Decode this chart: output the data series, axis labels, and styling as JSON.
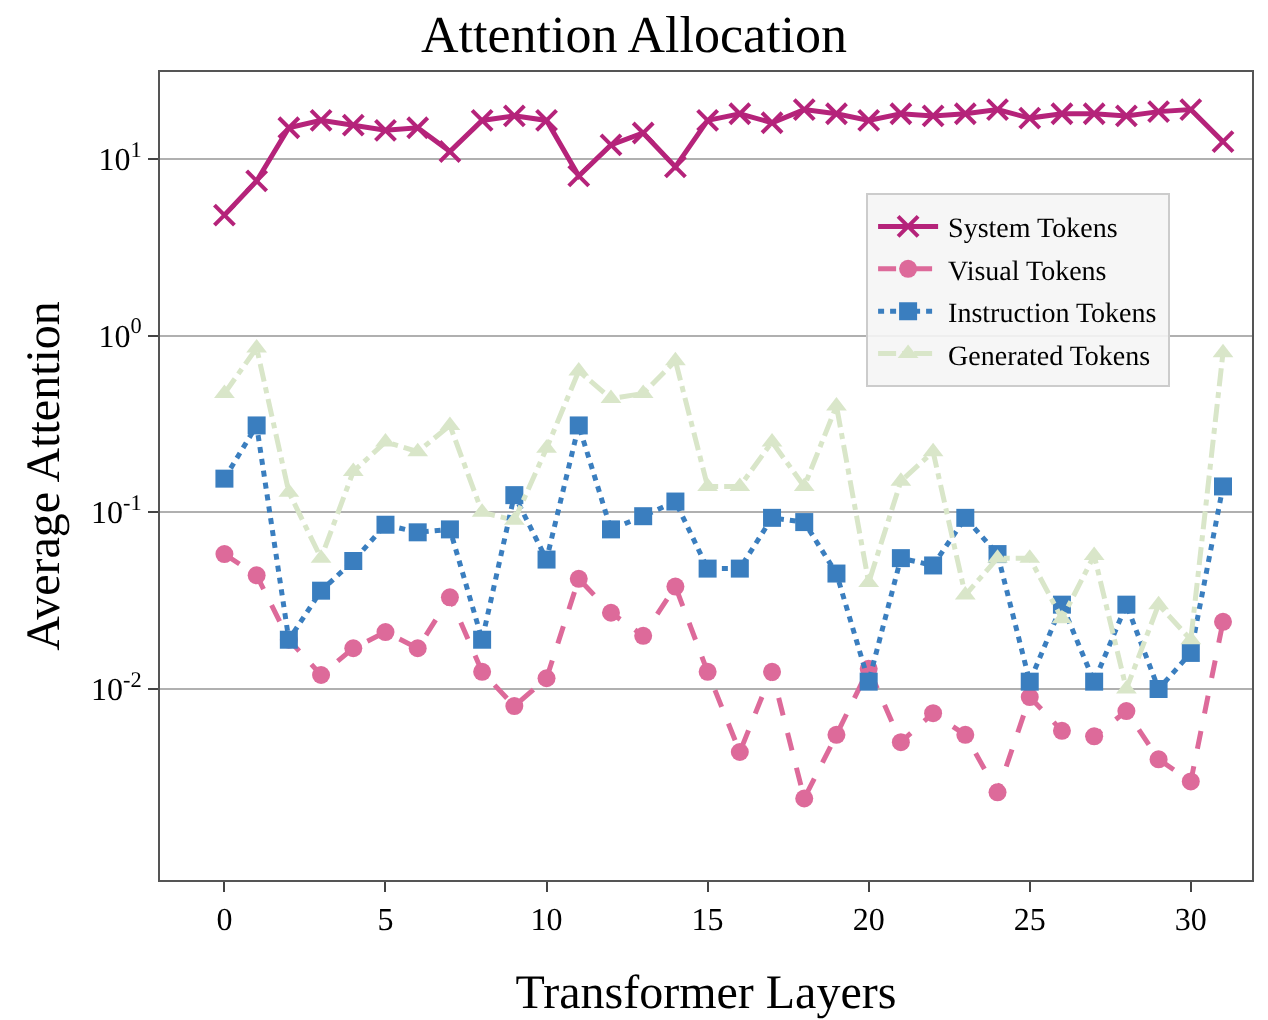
{
  "chart_data": {
    "type": "line",
    "title": "Attention Allocation",
    "xlabel": "Transformer Layers",
    "ylabel": "Average Attention",
    "x": [
      0,
      1,
      2,
      3,
      4,
      5,
      6,
      7,
      8,
      9,
      10,
      11,
      12,
      13,
      14,
      15,
      16,
      17,
      18,
      19,
      20,
      21,
      22,
      23,
      24,
      25,
      26,
      27,
      28,
      29,
      30,
      31
    ],
    "series": [
      {
        "name": "System Tokens",
        "color": "#b5237a",
        "marker": "cross",
        "line_style": "solid",
        "values": [
          4.8,
          7.5,
          15,
          16.5,
          15.5,
          14.5,
          15,
          11,
          16.5,
          17.5,
          16.5,
          8,
          12,
          14,
          9,
          16.5,
          18,
          16,
          19,
          18,
          16.5,
          18,
          17.5,
          18,
          19,
          17,
          18,
          18,
          17.5,
          18.5,
          19,
          12.5
        ]
      },
      {
        "name": "Visual Tokens",
        "color": "#dd6a9a",
        "marker": "circle",
        "line_style": "dashed",
        "values": [
          0.058,
          0.044,
          0.019,
          0.012,
          0.017,
          0.021,
          0.017,
          0.033,
          0.0125,
          0.008,
          0.0115,
          0.042,
          0.027,
          0.02,
          0.038,
          0.0125,
          0.0044,
          0.0125,
          0.0024,
          0.0055,
          0.013,
          0.005,
          0.0073,
          0.0055,
          0.0026,
          0.009,
          0.0058,
          0.0054,
          0.0075,
          0.004,
          0.003,
          0.024
        ]
      },
      {
        "name": "Instruction Tokens",
        "color": "#3a7ebf",
        "marker": "square",
        "line_style": "dotted",
        "values": [
          0.155,
          0.31,
          0.019,
          0.036,
          0.053,
          0.085,
          0.077,
          0.08,
          0.019,
          0.125,
          0.054,
          0.31,
          0.08,
          0.095,
          0.115,
          0.048,
          0.048,
          0.093,
          0.088,
          0.045,
          0.011,
          0.055,
          0.05,
          0.093,
          0.058,
          0.011,
          0.03,
          0.011,
          0.03,
          0.01,
          0.016,
          0.14
        ]
      },
      {
        "name": "Generated Tokens",
        "color": "#d9e6c9",
        "marker": "triangle",
        "line_style": "dashdot",
        "values": [
          0.47,
          0.85,
          0.13,
          0.055,
          0.17,
          0.25,
          0.22,
          0.31,
          0.1,
          0.09,
          0.23,
          0.63,
          0.44,
          0.47,
          0.72,
          0.14,
          0.14,
          0.25,
          0.14,
          0.4,
          0.04,
          0.15,
          0.22,
          0.034,
          0.055,
          0.055,
          0.025,
          0.057,
          0.01,
          0.03,
          0.019,
          0.8
        ]
      }
    ],
    "log": "y",
    "xlim": [
      -2,
      31.9
    ],
    "xticks": [
      0,
      5,
      10,
      15,
      20,
      25,
      30
    ],
    "ylim": [
      0.00083,
      31
    ],
    "yticks": [
      {
        "value": 0.01,
        "label": "10$^{-2}$"
      },
      {
        "value": 0.1,
        "label": "10$^{-1}$"
      },
      {
        "value": 1,
        "label": "10$^{0}$"
      },
      {
        "value": 10,
        "label": "10$^{1}$"
      }
    ],
    "grid": "y",
    "legend": "top right"
  }
}
